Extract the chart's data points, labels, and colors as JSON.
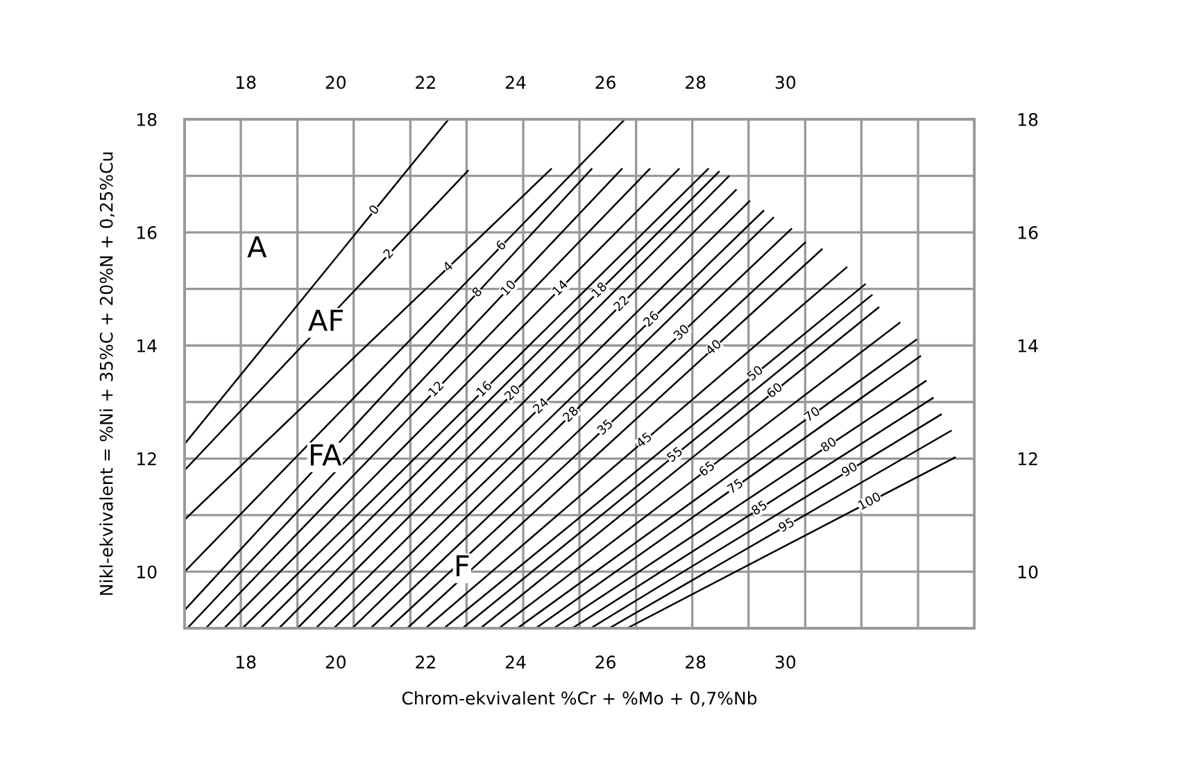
{
  "chart_data": {
    "type": "line",
    "xlabel": "Chrom-ekvivalent %Cr + %Mo + 0,7%Nb",
    "ylabel": "Nikl-ekvivalent = %Ni + 35%C + 20%N + 0,25%Cu",
    "xlim": [
      16.64,
      34.2
    ],
    "ylim": [
      9,
      18
    ],
    "xticks": [
      18,
      20,
      22,
      24,
      26,
      28,
      30
    ],
    "yticks": [
      10,
      {
        "value": 11,
        "label": null
      },
      12,
      {
        "value": 13,
        "label": null
      },
      14,
      {
        "value": 15,
        "label": null
      },
      16,
      {
        "value": 17,
        "label": null
      },
      18
    ],
    "x2lim": [
      16.64,
      34.2
    ],
    "x2ticks": [
      18,
      20,
      22,
      24,
      26,
      28,
      30
    ],
    "y2lim": [
      9,
      18
    ],
    "y2ticks": [
      10,
      12,
      14,
      16,
      18
    ],
    "grid": "y",
    "marker": "none",
    "line_style": "solid",
    "ref_lines": [
      {
        "axis": "x",
        "value": 17.89,
        "color": "#999999"
      },
      {
        "axis": "x",
        "value": 19.15,
        "color": "#999999"
      },
      {
        "axis": "x",
        "value": 20.4,
        "color": "#999999"
      },
      {
        "axis": "x",
        "value": 21.66,
        "color": "#999999"
      },
      {
        "axis": "x",
        "value": 22.91,
        "color": "#999999"
      },
      {
        "axis": "x",
        "value": 24.17,
        "color": "#999999"
      },
      {
        "axis": "x",
        "value": 25.42,
        "color": "#999999"
      },
      {
        "axis": "x",
        "value": 26.68,
        "color": "#999999"
      },
      {
        "axis": "x",
        "value": 27.93,
        "color": "#999999"
      },
      {
        "axis": "x",
        "value": 29.18,
        "color": "#999999"
      },
      {
        "axis": "x",
        "value": 30.44,
        "color": "#999999"
      },
      {
        "axis": "x",
        "value": 31.69,
        "color": "#999999"
      },
      {
        "axis": "x",
        "value": 32.95,
        "color": "#999999"
      }
    ],
    "annotations": [
      {
        "text": "A",
        "x": 18.25,
        "y": 15.7
      },
      {
        "text": "AF",
        "x": 19.79,
        "y": 14.4
      },
      {
        "text": "FA",
        "x": 19.76,
        "y": 12.02
      },
      {
        "text": "F",
        "x": 22.81,
        "y": 10.06
      }
    ],
    "series": [
      {
        "name": "0",
        "color": "#000000",
        "x": [
          16.64,
          22.51
        ],
        "values": [
          12.26,
          18
        ]
      },
      {
        "name": "2",
        "color": "#000000",
        "x": [
          16.67,
          22.94
        ],
        "values": [
          11.82,
          17.09
        ]
      },
      {
        "name": "4",
        "color": "#000000",
        "x": [
          16.64,
          24.79
        ],
        "values": [
          10.92,
          17.12
        ]
      },
      {
        "name": "6",
        "color": "#000000",
        "x": [
          16.64,
          26.43
        ],
        "values": [
          10.0,
          18
        ]
      },
      {
        "name": "8",
        "color": "#000000",
        "x": [
          16.64,
          25.69
        ],
        "values": [
          9.32,
          17.12
        ]
      },
      {
        "name": "10",
        "color": "#000000",
        "x": [
          16.7,
          26.36
        ],
        "values": [
          9.0,
          17.12
        ]
      },
      {
        "name": "12",
        "color": "#000000",
        "x": [
          17.11,
          26.98
        ],
        "values": [
          9.0,
          17.12
        ]
      },
      {
        "name": "14",
        "color": "#000000",
        "x": [
          17.52,
          27.63
        ],
        "values": [
          9.0,
          17.12
        ]
      },
      {
        "name": "16",
        "color": "#000000",
        "x": [
          17.93,
          28.28
        ],
        "values": [
          9.0,
          17.12
        ]
      },
      {
        "name": "18",
        "color": "#000000",
        "x": [
          18.33,
          28.52
        ],
        "values": [
          9.0,
          17.07
        ]
      },
      {
        "name": "20",
        "color": "#000000",
        "x": [
          18.74,
          28.74
        ],
        "values": [
          9.0,
          16.99
        ]
      },
      {
        "name": "22",
        "color": "#000000",
        "x": [
          19.15,
          28.9
        ],
        "values": [
          9.0,
          16.75
        ]
      },
      {
        "name": "24",
        "color": "#000000",
        "x": [
          19.56,
          29.2
        ],
        "values": [
          9.0,
          16.55
        ]
      },
      {
        "name": "26",
        "color": "#000000",
        "x": [
          19.96,
          29.51
        ],
        "values": [
          9.0,
          16.38
        ]
      },
      {
        "name": "28",
        "color": "#000000",
        "x": [
          20.37,
          29.73
        ],
        "values": [
          9.0,
          16.26
        ]
      },
      {
        "name": "30",
        "color": "#000000",
        "x": [
          20.78,
          30.13
        ],
        "values": [
          9.0,
          16.06
        ]
      },
      {
        "name": "35",
        "color": "#000000",
        "x": [
          21.19,
          30.44
        ],
        "values": [
          9.0,
          15.82
        ]
      },
      {
        "name": "40",
        "color": "#000000",
        "x": [
          21.59,
          30.81
        ],
        "values": [
          9.0,
          15.7
        ]
      },
      {
        "name": "45",
        "color": "#000000",
        "x": [
          22.0,
          31.36
        ],
        "values": [
          9.0,
          15.38
        ]
      },
      {
        "name": "50",
        "color": "#000000",
        "x": [
          22.41,
          31.77
        ],
        "values": [
          9.0,
          15.08
        ]
      },
      {
        "name": "55",
        "color": "#000000",
        "x": [
          22.82,
          31.92
        ],
        "values": [
          9.0,
          14.89
        ]
      },
      {
        "name": "60",
        "color": "#000000",
        "x": [
          23.22,
          32.07
        ],
        "values": [
          9.0,
          14.67
        ]
      },
      {
        "name": "65",
        "color": "#000000",
        "x": [
          23.63,
          32.54
        ],
        "values": [
          9.0,
          14.4
        ]
      },
      {
        "name": "70",
        "color": "#000000",
        "x": [
          24.04,
          32.91
        ],
        "values": [
          9.0,
          14.1
        ]
      },
      {
        "name": "75",
        "color": "#000000",
        "x": [
          24.45,
          33.0
        ],
        "values": [
          9.0,
          13.81
        ]
      },
      {
        "name": "80",
        "color": "#000000",
        "x": [
          24.85,
          33.12
        ],
        "values": [
          9.0,
          13.37
        ]
      },
      {
        "name": "85",
        "color": "#000000",
        "x": [
          25.26,
          33.28
        ],
        "values": [
          9.0,
          13.07
        ]
      },
      {
        "name": "90",
        "color": "#000000",
        "x": [
          25.67,
          33.46
        ],
        "values": [
          9.0,
          12.78
        ]
      },
      {
        "name": "95",
        "color": "#000000",
        "x": [
          26.08,
          33.68
        ],
        "values": [
          9.0,
          12.49
        ]
      },
      {
        "name": "100",
        "color": "#000000",
        "x": [
          26.48,
          33.77
        ],
        "values": [
          9.0,
          12.02
        ]
      }
    ]
  }
}
